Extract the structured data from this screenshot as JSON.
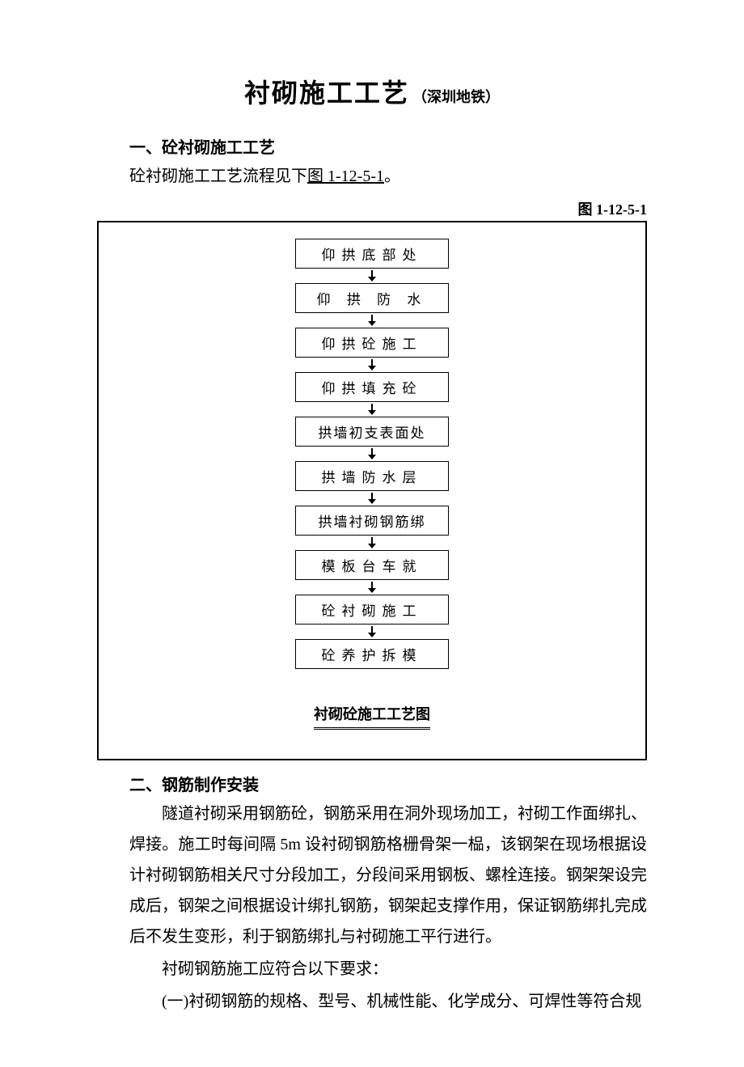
{
  "title": {
    "main": "衬砌施工工艺",
    "sub": "（深圳地铁）"
  },
  "section1": {
    "heading": "一、砼衬砌施工工艺",
    "intro_pre": "砼衬砌施工工艺流程见下",
    "intro_ref": "图 1-12-5-1",
    "intro_post": "。"
  },
  "figure": {
    "label": "图 1-12-5-1",
    "caption": "衬砌砼施工工艺图",
    "steps": [
      {
        "text": "仰拱底部处",
        "tight": false
      },
      {
        "text": "仰 拱 防 水",
        "tight": false
      },
      {
        "text": "仰拱砼施工",
        "tight": false
      },
      {
        "text": "仰拱填充砼",
        "tight": false
      },
      {
        "text": "拱墙初支表面处",
        "tight": true
      },
      {
        "text": "拱墙防水层",
        "tight": false
      },
      {
        "text": "拱墙衬砌钢筋绑",
        "tight": true
      },
      {
        "text": "模板台车就",
        "tight": false
      },
      {
        "text": "砼衬砌施工",
        "tight": false
      },
      {
        "text": "砼养护拆模",
        "tight": false
      }
    ]
  },
  "section2": {
    "heading": "二、钢筋制作安装",
    "para1": "隧道衬砌采用钢筋砼，钢筋采用在洞外现场加工，衬砌工作面绑扎、焊接。施工时每间隔 5m 设衬砌钢筋格栅骨架一榀，该钢架在现场根据设计衬砌钢筋相关尺寸分段加工，分段间采用钢板、螺栓连接。钢架架设完成后，钢架之间根据设计绑扎钢筋，钢架起支撑作用，保证钢筋绑扎完成后不发生变形，利于钢筋绑扎与衬砌施工平行进行。",
    "para2": "衬砌钢筋施工应符合以下要求：",
    "para3": "(一)衬砌钢筋的规格、型号、机械性能、化学成分、可焊性等符合规"
  },
  "colors": {
    "text": "#000000",
    "background": "#ffffff",
    "border": "#000000"
  },
  "arrow": {
    "width": 10,
    "height": 14,
    "shaft_width": 2,
    "head_width": 10
  }
}
